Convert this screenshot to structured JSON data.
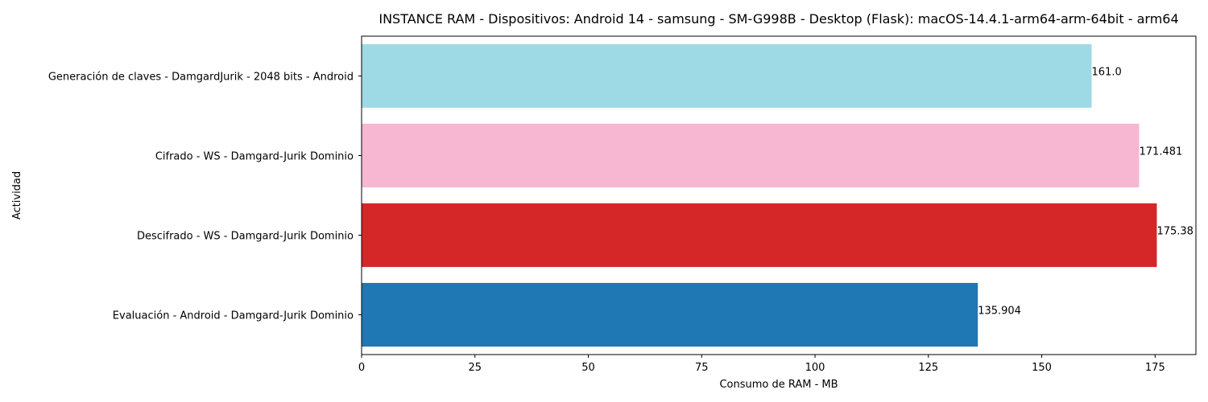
{
  "chart_data": {
    "type": "bar",
    "orientation": "horizontal",
    "title": "INSTANCE RAM - Dispositivos: Android 14 - samsung - SM-G998B - Desktop (Flask): macOS-14.4.1-arm64-arm-64bit - arm64",
    "xlabel": "Consumo de RAM - MB",
    "ylabel": "Actividad",
    "xlim": [
      0,
      184
    ],
    "xticks": [
      0,
      25,
      50,
      75,
      100,
      125,
      150,
      175
    ],
    "grid": false,
    "categories": [
      "Generación de claves - DamgardJurik - 2048 bits - Android",
      "Cifrado - WS - Damgard-Jurik Dominio",
      "Descifrado - WS - Damgard-Jurik Dominio",
      "Evaluación - Android - Damgard-Jurik Dominio"
    ],
    "values": [
      161.0,
      171.481,
      175.38,
      135.904
    ],
    "value_labels": [
      "161.0",
      "171.481",
      "175.38",
      "135.904"
    ],
    "colors": [
      "#9edae5",
      "#f7b6d2",
      "#d62728",
      "#1f77b4"
    ]
  }
}
